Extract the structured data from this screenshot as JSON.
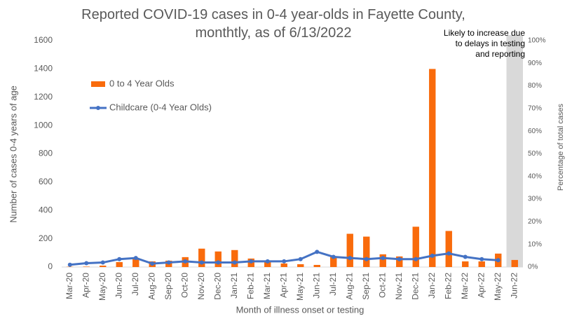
{
  "chart_data": {
    "type": "bar",
    "title": "Reported COVID-19 cases in 0-4 year-olds in Fayette County, monthtly, as of 6/13/2022",
    "xlabel": "Month of illness onset or testing",
    "ylabel": "Number of cases 0-4 years of age",
    "y2label": "Percentage of total cases",
    "annotation": [
      "Likely to increase due",
      "to delays in testing",
      "and reporting"
    ],
    "categories": [
      "Mar-20",
      "Apr-20",
      "May-20",
      "Jun-20",
      "Jul-20",
      "Aug-20",
      "Sep-20",
      "Oct-20",
      "Nov-20",
      "Dec-20",
      "Jan-21",
      "Feb-21",
      "Mar-21",
      "Apr-21",
      "May-21",
      "Jun-21",
      "Jul-21",
      "Aug-21",
      "Sep-21",
      "Oct-21",
      "Nov-21",
      "Dec-21",
      "Jan-22",
      "Feb-22",
      "Mar-22",
      "Apr-22",
      "May-22",
      "Jun-22"
    ],
    "series": [
      {
        "name": "0 to 4 Year Olds",
        "type": "bar",
        "color": "#f96b0c",
        "values": [
          2,
          3,
          10,
          35,
          65,
          40,
          45,
          70,
          130,
          110,
          120,
          60,
          45,
          25,
          20,
          15,
          75,
          235,
          215,
          90,
          75,
          285,
          1400,
          255,
          40,
          40,
          95,
          50
        ]
      },
      {
        "name": "Childcare (0-4 Year Olds)",
        "type": "line",
        "axis": "y2",
        "color": "#4472c4",
        "values": [
          1,
          1.7,
          2,
          3.5,
          4,
          1.5,
          2,
          2.5,
          2,
          2,
          2,
          2.5,
          2.5,
          2.5,
          3.5,
          6.7,
          4.5,
          4,
          3.5,
          4,
          3.5,
          3.5,
          5,
          6,
          4.5,
          3.5,
          3,
          null
        ]
      }
    ],
    "ylim": [
      0,
      1600
    ],
    "yticks": [
      0,
      200,
      400,
      600,
      800,
      1000,
      1200,
      1400,
      1600
    ],
    "y2lim": [
      0,
      100
    ],
    "y2ticks": [
      {
        "value": 0,
        "label": "0%"
      },
      {
        "value": 10,
        "label": "10%"
      },
      {
        "value": 20,
        "label": "20%"
      },
      {
        "value": 30,
        "label": "30%"
      },
      {
        "value": 40,
        "label": "40%"
      },
      {
        "value": 50,
        "label": "50%"
      },
      {
        "value": 60,
        "label": "60%"
      },
      {
        "value": 70,
        "label": "70%"
      },
      {
        "value": 80,
        "label": "80%"
      },
      {
        "value": 90,
        "label": "90%"
      },
      {
        "value": 100,
        "label": "100%"
      }
    ],
    "legend": "upper left",
    "grid": false
  }
}
